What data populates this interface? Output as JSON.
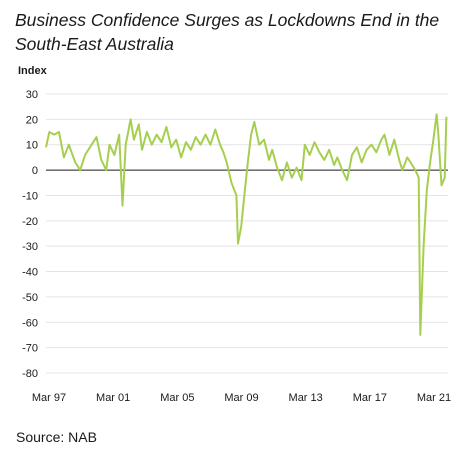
{
  "title": "Business Confidence Surges as Lockdowns End in the South-East Australia",
  "source": "Source: NAB",
  "chart_data": {
    "type": "line",
    "title": "Business Confidence Surges as Lockdowns End in the South-East Australia",
    "ylabel": "Index",
    "xlabel": "",
    "ylim": [
      -80,
      30
    ],
    "y_ticks": [
      "30",
      "20",
      "10",
      "0",
      "-10",
      "-20",
      "-30",
      "-40",
      "-50",
      "-60",
      "-70",
      "-80"
    ],
    "x_ticks": [
      "Mar 97",
      "Mar 01",
      "Mar 05",
      "Mar 09",
      "Mar 13",
      "Mar 17",
      "Mar 21"
    ],
    "grid": true,
    "line_color": "#a6cf4f",
    "series": [
      {
        "name": "",
        "points": [
          [
            1997.2,
            9
          ],
          [
            1997.4,
            15
          ],
          [
            1997.7,
            14
          ],
          [
            1998.0,
            15
          ],
          [
            1998.3,
            5
          ],
          [
            1998.6,
            10
          ],
          [
            1999.0,
            3
          ],
          [
            1999.3,
            0
          ],
          [
            1999.6,
            6
          ],
          [
            2000.0,
            10
          ],
          [
            2000.3,
            13
          ],
          [
            2000.6,
            4
          ],
          [
            2000.9,
            0
          ],
          [
            2001.1,
            10
          ],
          [
            2001.4,
            6
          ],
          [
            2001.7,
            14
          ],
          [
            2001.9,
            -14
          ],
          [
            2002.1,
            10
          ],
          [
            2002.4,
            20
          ],
          [
            2002.6,
            12
          ],
          [
            2002.9,
            18
          ],
          [
            2003.1,
            8
          ],
          [
            2003.4,
            15
          ],
          [
            2003.7,
            10
          ],
          [
            2004.0,
            14
          ],
          [
            2004.3,
            11
          ],
          [
            2004.6,
            17
          ],
          [
            2004.9,
            9
          ],
          [
            2005.2,
            12
          ],
          [
            2005.5,
            5
          ],
          [
            2005.8,
            11
          ],
          [
            2006.1,
            8
          ],
          [
            2006.4,
            13
          ],
          [
            2006.7,
            10
          ],
          [
            2007.0,
            14
          ],
          [
            2007.3,
            10
          ],
          [
            2007.6,
            16
          ],
          [
            2007.9,
            10
          ],
          [
            2008.1,
            7
          ],
          [
            2008.3,
            3
          ],
          [
            2008.6,
            -5
          ],
          [
            2008.9,
            -10
          ],
          [
            2009.0,
            -29
          ],
          [
            2009.2,
            -22
          ],
          [
            2009.4,
            -9
          ],
          [
            2009.6,
            3
          ],
          [
            2009.8,
            14
          ],
          [
            2010.0,
            19
          ],
          [
            2010.3,
            10
          ],
          [
            2010.6,
            12
          ],
          [
            2010.9,
            4
          ],
          [
            2011.1,
            8
          ],
          [
            2011.4,
            1
          ],
          [
            2011.7,
            -4
          ],
          [
            2012.0,
            3
          ],
          [
            2012.3,
            -3
          ],
          [
            2012.6,
            1
          ],
          [
            2012.9,
            -4
          ],
          [
            2013.1,
            10
          ],
          [
            2013.4,
            6
          ],
          [
            2013.7,
            11
          ],
          [
            2014.0,
            7
          ],
          [
            2014.3,
            4
          ],
          [
            2014.6,
            8
          ],
          [
            2014.9,
            2
          ],
          [
            2015.1,
            5
          ],
          [
            2015.4,
            0
          ],
          [
            2015.7,
            -4
          ],
          [
            2016.0,
            6
          ],
          [
            2016.3,
            9
          ],
          [
            2016.6,
            3
          ],
          [
            2016.9,
            8
          ],
          [
            2017.2,
            10
          ],
          [
            2017.5,
            7
          ],
          [
            2017.8,
            12
          ],
          [
            2018.0,
            14
          ],
          [
            2018.3,
            6
          ],
          [
            2018.6,
            12
          ],
          [
            2018.9,
            4
          ],
          [
            2019.1,
            0
          ],
          [
            2019.4,
            5
          ],
          [
            2019.7,
            2
          ],
          [
            2019.9,
            0
          ],
          [
            2020.1,
            -3
          ],
          [
            2020.2,
            -65
          ],
          [
            2020.4,
            -30
          ],
          [
            2020.6,
            -8
          ],
          [
            2020.8,
            3
          ],
          [
            2021.0,
            12
          ],
          [
            2021.2,
            22
          ],
          [
            2021.3,
            15
          ],
          [
            2021.5,
            -6
          ],
          [
            2021.7,
            -3
          ],
          [
            2021.8,
            21
          ]
        ]
      }
    ]
  }
}
